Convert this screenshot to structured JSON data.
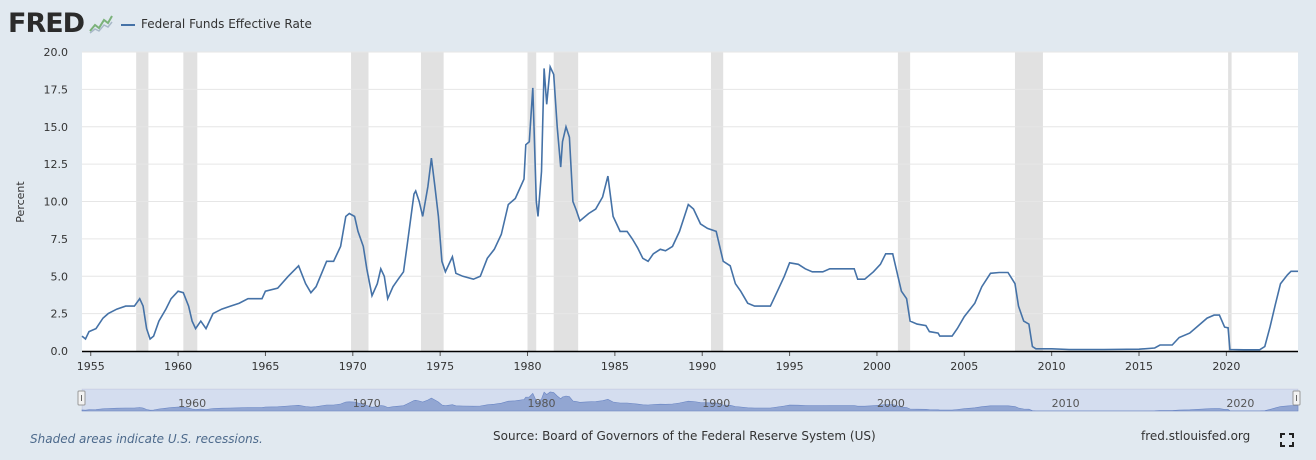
{
  "header": {
    "logo": "FRED",
    "legend_label": "Federal Funds Effective Rate"
  },
  "footer": {
    "note": "Shaded areas indicate U.S. recessions.",
    "source": "Source: Board of Governors of the Federal Reserve System (US)",
    "site": "fred.stlouisfed.org"
  },
  "colors": {
    "line": "#4572a7",
    "recession": "#e1e1e1",
    "navigator": "#9fb0d6"
  },
  "chart_data": {
    "type": "line",
    "title": "",
    "xlabel": "",
    "ylabel": "Percent",
    "xlim": [
      1954.5,
      2024.1
    ],
    "ylim": [
      0,
      20
    ],
    "yticks": [
      "0.0",
      "2.5",
      "5.0",
      "7.5",
      "10.0",
      "12.5",
      "15.0",
      "17.5",
      "20.0"
    ],
    "xticks": [
      "1955",
      "1960",
      "1965",
      "1970",
      "1975",
      "1980",
      "1985",
      "1990",
      "1995",
      "2000",
      "2005",
      "2010",
      "2015",
      "2020"
    ],
    "navigator_ticks": [
      "1960",
      "1970",
      "1980",
      "1990",
      "2000",
      "2010",
      "2020"
    ],
    "grid": true,
    "legend": "top-left",
    "recessions": [
      [
        1957.6,
        1958.3
      ],
      [
        1960.3,
        1961.1
      ],
      [
        1969.9,
        1970.9
      ],
      [
        1973.9,
        1975.2
      ],
      [
        1980.0,
        1980.5
      ],
      [
        1981.5,
        1982.9
      ],
      [
        1990.5,
        1991.2
      ],
      [
        2001.2,
        2001.9
      ],
      [
        2007.9,
        2009.5
      ],
      [
        2020.1,
        2020.3
      ]
    ],
    "series": [
      {
        "name": "Federal Funds Effective Rate",
        "points": [
          [
            1954.5,
            1.0
          ],
          [
            1954.7,
            0.8
          ],
          [
            1954.9,
            1.3
          ],
          [
            1955.3,
            1.5
          ],
          [
            1955.7,
            2.2
          ],
          [
            1956.0,
            2.5
          ],
          [
            1956.5,
            2.8
          ],
          [
            1957.0,
            3.0
          ],
          [
            1957.5,
            3.0
          ],
          [
            1957.8,
            3.5
          ],
          [
            1958.0,
            3.0
          ],
          [
            1958.2,
            1.5
          ],
          [
            1958.4,
            0.8
          ],
          [
            1958.6,
            1.0
          ],
          [
            1958.9,
            2.0
          ],
          [
            1959.3,
            2.8
          ],
          [
            1959.6,
            3.5
          ],
          [
            1960.0,
            4.0
          ],
          [
            1960.3,
            3.9
          ],
          [
            1960.6,
            3.0
          ],
          [
            1960.8,
            2.0
          ],
          [
            1961.0,
            1.5
          ],
          [
            1961.3,
            2.0
          ],
          [
            1961.6,
            1.5
          ],
          [
            1962.0,
            2.5
          ],
          [
            1962.5,
            2.8
          ],
          [
            1963.0,
            3.0
          ],
          [
            1963.5,
            3.2
          ],
          [
            1964.0,
            3.5
          ],
          [
            1964.8,
            3.5
          ],
          [
            1965.0,
            4.0
          ],
          [
            1965.7,
            4.2
          ],
          [
            1966.3,
            5.0
          ],
          [
            1966.9,
            5.7
          ],
          [
            1967.3,
            4.5
          ],
          [
            1967.6,
            3.9
          ],
          [
            1967.9,
            4.3
          ],
          [
            1968.5,
            6.0
          ],
          [
            1968.9,
            6.0
          ],
          [
            1969.3,
            7.0
          ],
          [
            1969.6,
            9.0
          ],
          [
            1969.8,
            9.2
          ],
          [
            1970.1,
            9.0
          ],
          [
            1970.3,
            8.0
          ],
          [
            1970.6,
            7.0
          ],
          [
            1970.8,
            5.5
          ],
          [
            1971.1,
            3.7
          ],
          [
            1971.4,
            4.5
          ],
          [
            1971.6,
            5.5
          ],
          [
            1971.8,
            5.0
          ],
          [
            1972.0,
            3.5
          ],
          [
            1972.3,
            4.3
          ],
          [
            1972.6,
            4.8
          ],
          [
            1972.9,
            5.3
          ],
          [
            1973.1,
            7.0
          ],
          [
            1973.5,
            10.5
          ],
          [
            1973.6,
            10.7
          ],
          [
            1973.8,
            10.0
          ],
          [
            1974.0,
            9.0
          ],
          [
            1974.3,
            11.0
          ],
          [
            1974.5,
            12.9
          ],
          [
            1974.7,
            11.0
          ],
          [
            1974.9,
            9.0
          ],
          [
            1975.1,
            6.0
          ],
          [
            1975.3,
            5.3
          ],
          [
            1975.7,
            6.3
          ],
          [
            1975.9,
            5.2
          ],
          [
            1976.3,
            5.0
          ],
          [
            1976.9,
            4.8
          ],
          [
            1977.3,
            5.0
          ],
          [
            1977.7,
            6.2
          ],
          [
            1978.1,
            6.8
          ],
          [
            1978.5,
            7.8
          ],
          [
            1978.9,
            9.8
          ],
          [
            1979.3,
            10.2
          ],
          [
            1979.8,
            11.5
          ],
          [
            1979.9,
            13.8
          ],
          [
            1980.1,
            14.0
          ],
          [
            1980.3,
            17.6
          ],
          [
            1980.5,
            10.0
          ],
          [
            1980.6,
            9.0
          ],
          [
            1980.8,
            12.0
          ],
          [
            1980.95,
            18.9
          ],
          [
            1981.1,
            16.5
          ],
          [
            1981.3,
            19.0
          ],
          [
            1981.5,
            18.5
          ],
          [
            1981.7,
            15.0
          ],
          [
            1981.9,
            12.3
          ],
          [
            1982.0,
            14.0
          ],
          [
            1982.2,
            15.0
          ],
          [
            1982.4,
            14.3
          ],
          [
            1982.6,
            10.0
          ],
          [
            1982.8,
            9.4
          ],
          [
            1983.0,
            8.7
          ],
          [
            1983.5,
            9.2
          ],
          [
            1983.9,
            9.5
          ],
          [
            1984.3,
            10.3
          ],
          [
            1984.6,
            11.7
          ],
          [
            1984.9,
            9.0
          ],
          [
            1985.3,
            8.0
          ],
          [
            1985.7,
            8.0
          ],
          [
            1986.0,
            7.5
          ],
          [
            1986.3,
            6.9
          ],
          [
            1986.6,
            6.2
          ],
          [
            1986.9,
            6.0
          ],
          [
            1987.2,
            6.5
          ],
          [
            1987.6,
            6.8
          ],
          [
            1987.9,
            6.7
          ],
          [
            1988.3,
            7.0
          ],
          [
            1988.7,
            8.0
          ],
          [
            1989.2,
            9.8
          ],
          [
            1989.5,
            9.5
          ],
          [
            1989.9,
            8.5
          ],
          [
            1990.3,
            8.2
          ],
          [
            1990.8,
            8.0
          ],
          [
            1991.2,
            6.0
          ],
          [
            1991.6,
            5.7
          ],
          [
            1991.9,
            4.5
          ],
          [
            1992.2,
            4.0
          ],
          [
            1992.6,
            3.2
          ],
          [
            1993.0,
            3.0
          ],
          [
            1993.5,
            3.0
          ],
          [
            1993.9,
            3.0
          ],
          [
            1994.3,
            4.0
          ],
          [
            1994.7,
            5.0
          ],
          [
            1995.0,
            5.9
          ],
          [
            1995.5,
            5.8
          ],
          [
            1995.9,
            5.5
          ],
          [
            1996.3,
            5.3
          ],
          [
            1996.9,
            5.3
          ],
          [
            1997.3,
            5.5
          ],
          [
            1998.0,
            5.5
          ],
          [
            1998.7,
            5.5
          ],
          [
            1998.9,
            4.8
          ],
          [
            1999.3,
            4.8
          ],
          [
            1999.8,
            5.3
          ],
          [
            2000.2,
            5.8
          ],
          [
            2000.5,
            6.5
          ],
          [
            2000.9,
            6.5
          ],
          [
            2001.1,
            5.5
          ],
          [
            2001.4,
            4.0
          ],
          [
            2001.7,
            3.5
          ],
          [
            2001.9,
            2.0
          ],
          [
            2002.3,
            1.8
          ],
          [
            2002.8,
            1.7
          ],
          [
            2003.0,
            1.3
          ],
          [
            2003.5,
            1.2
          ],
          [
            2003.6,
            1.0
          ],
          [
            2004.3,
            1.0
          ],
          [
            2004.6,
            1.5
          ],
          [
            2005.0,
            2.3
          ],
          [
            2005.6,
            3.2
          ],
          [
            2006.0,
            4.3
          ],
          [
            2006.5,
            5.2
          ],
          [
            2007.0,
            5.25
          ],
          [
            2007.5,
            5.25
          ],
          [
            2007.9,
            4.5
          ],
          [
            2008.1,
            3.0
          ],
          [
            2008.4,
            2.0
          ],
          [
            2008.7,
            1.8
          ],
          [
            2008.9,
            0.3
          ],
          [
            2009.1,
            0.15
          ],
          [
            2010.0,
            0.15
          ],
          [
            2011.0,
            0.1
          ],
          [
            2013.0,
            0.1
          ],
          [
            2015.0,
            0.12
          ],
          [
            2015.9,
            0.2
          ],
          [
            2016.2,
            0.4
          ],
          [
            2016.9,
            0.4
          ],
          [
            2017.3,
            0.9
          ],
          [
            2017.9,
            1.2
          ],
          [
            2018.4,
            1.7
          ],
          [
            2018.9,
            2.2
          ],
          [
            2019.3,
            2.4
          ],
          [
            2019.6,
            2.4
          ],
          [
            2019.9,
            1.6
          ],
          [
            2020.1,
            1.55
          ],
          [
            2020.2,
            0.1
          ],
          [
            2021.0,
            0.08
          ],
          [
            2021.9,
            0.08
          ],
          [
            2022.2,
            0.3
          ],
          [
            2022.5,
            1.6
          ],
          [
            2022.8,
            3.1
          ],
          [
            2023.1,
            4.5
          ],
          [
            2023.5,
            5.1
          ],
          [
            2023.7,
            5.33
          ],
          [
            2024.1,
            5.33
          ]
        ]
      }
    ]
  }
}
